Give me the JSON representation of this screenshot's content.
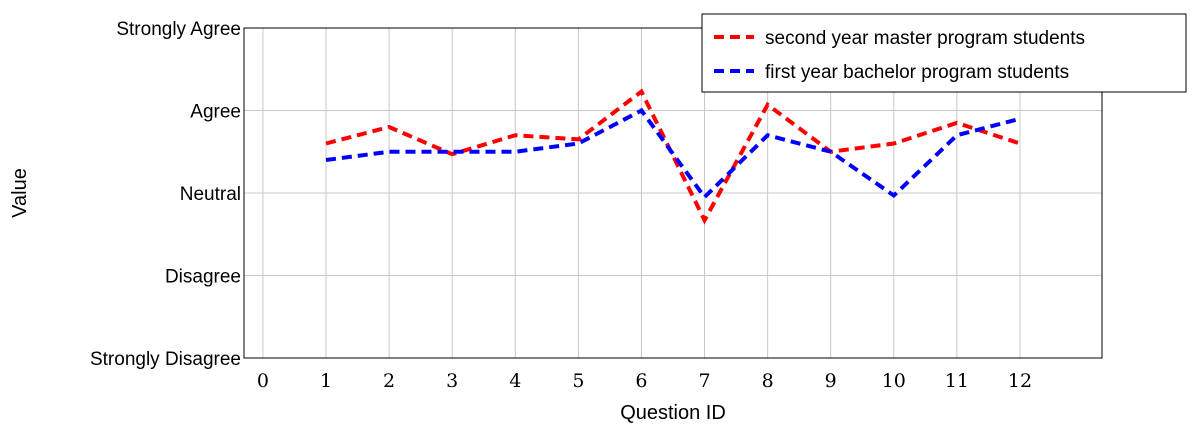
{
  "chart_data": {
    "type": "line",
    "xlabel": "Question ID",
    "ylabel": "Value",
    "xlim": [
      -0.3,
      13.3
    ],
    "ylim": [
      1,
      5
    ],
    "x_ticks": [
      "0",
      "1",
      "2",
      "3",
      "4",
      "5",
      "6",
      "7",
      "8",
      "9",
      "10",
      "11",
      "12"
    ],
    "y_ticks": [
      "Strongly Disagree",
      "Disagree",
      "Neutral",
      "Agree",
      "Strongly Agree"
    ],
    "y_tick_values": [
      1,
      2,
      3,
      4,
      5
    ],
    "grid": true,
    "legend_position": "top-right",
    "x": [
      1,
      2,
      3,
      4,
      5,
      6,
      7,
      8,
      9,
      10,
      11,
      12
    ],
    "series": [
      {
        "name": "second year master program students",
        "color": "#ff0000",
        "style": "dashed",
        "values": [
          3.6,
          3.8,
          3.47,
          3.7,
          3.65,
          4.23,
          2.67,
          4.07,
          3.5,
          3.6,
          3.85,
          3.6
        ]
      },
      {
        "name": "first year bachelor program students",
        "color": "#0000ff",
        "style": "dashed",
        "values": [
          3.4,
          3.5,
          3.5,
          3.5,
          3.6,
          4.0,
          2.95,
          3.7,
          3.5,
          2.97,
          3.7,
          3.9
        ]
      }
    ]
  }
}
